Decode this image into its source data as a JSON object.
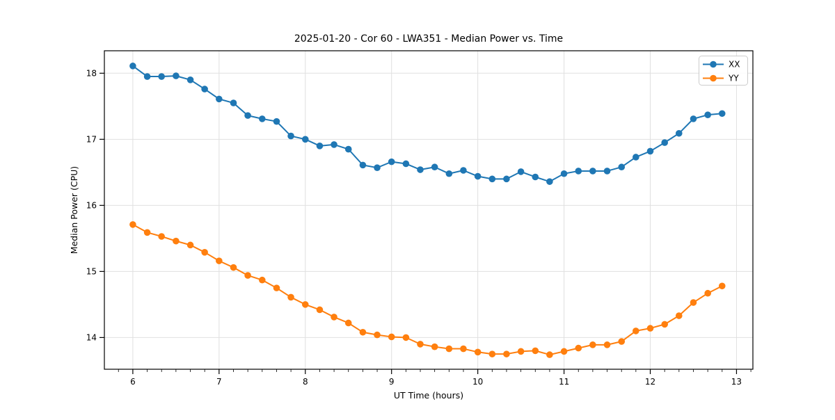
{
  "chart_data": {
    "type": "line",
    "title": "2025-01-20 - Cor 60 - LWA351 - Median Power vs. Time",
    "xlabel": "UT Time (hours)",
    "ylabel": "Median Power (CPU)",
    "xlim": [
      5.67,
      13.19
    ],
    "ylim": [
      13.52,
      18.34
    ],
    "x_major_ticks": [
      6,
      7,
      8,
      9,
      10,
      11,
      12,
      13
    ],
    "x_minor_step_hours": 0.1667,
    "y_major_ticks": [
      14,
      15,
      16,
      17,
      18
    ],
    "grid": true,
    "grid_color": "#e0e0e0",
    "legend_position": "upper right",
    "x": [
      6.0,
      6.167,
      6.333,
      6.5,
      6.667,
      6.833,
      7.0,
      7.167,
      7.333,
      7.5,
      7.667,
      7.833,
      8.0,
      8.167,
      8.333,
      8.5,
      8.667,
      8.833,
      9.0,
      9.167,
      9.333,
      9.5,
      9.667,
      9.833,
      10.0,
      10.167,
      10.333,
      10.5,
      10.667,
      10.833,
      11.0,
      11.167,
      11.333,
      11.5,
      11.667,
      11.833,
      12.0,
      12.167,
      12.333,
      12.5,
      12.667,
      12.833
    ],
    "series": [
      {
        "name": "XX",
        "color": "#1f77b4",
        "marker": "circle",
        "values": [
          18.11,
          17.95,
          17.95,
          17.96,
          17.9,
          17.76,
          17.61,
          17.55,
          17.36,
          17.31,
          17.27,
          17.05,
          17.0,
          16.9,
          16.92,
          16.85,
          16.61,
          16.57,
          16.66,
          16.63,
          16.54,
          16.58,
          16.48,
          16.53,
          16.44,
          16.4,
          16.4,
          16.51,
          16.43,
          16.36,
          16.48,
          16.52,
          16.52,
          16.52,
          16.58,
          16.73,
          16.82,
          16.95,
          17.09,
          17.31,
          17.37,
          17.39
        ]
      },
      {
        "name": "YY",
        "color": "#ff7f0e",
        "marker": "circle",
        "values": [
          15.71,
          15.59,
          15.53,
          15.46,
          15.4,
          15.29,
          15.16,
          15.06,
          14.94,
          14.87,
          14.75,
          14.61,
          14.5,
          14.42,
          14.31,
          14.22,
          14.08,
          14.04,
          14.01,
          14.0,
          13.9,
          13.86,
          13.83,
          13.83,
          13.78,
          13.75,
          13.75,
          13.79,
          13.8,
          13.74,
          13.79,
          13.84,
          13.89,
          13.89,
          13.94,
          14.1,
          14.14,
          14.2,
          14.33,
          14.53,
          14.67,
          14.78
        ]
      }
    ]
  }
}
